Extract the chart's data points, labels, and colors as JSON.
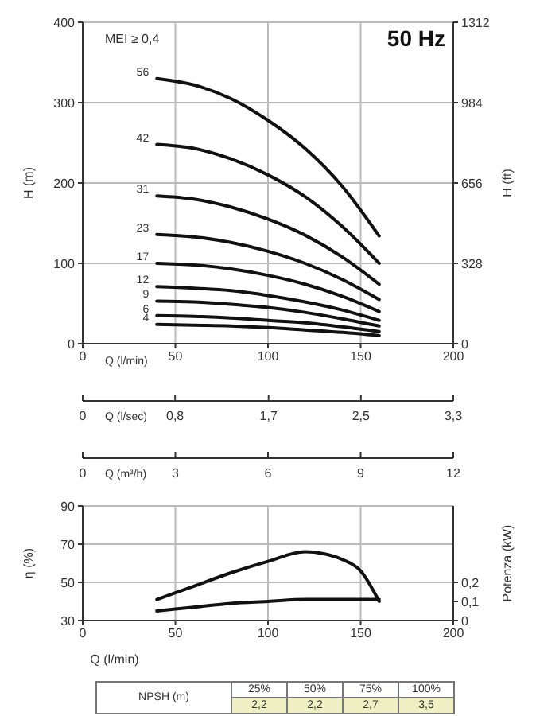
{
  "chart_data": [
    {
      "type": "line",
      "xlabel": "Q (l/min)",
      "ylabel": "H (m)",
      "y2label": "H (ft)",
      "x2label": "Q (l/sec)",
      "marker": "none",
      "grid": true,
      "x": [
        40,
        60,
        80,
        100,
        120,
        140,
        160
      ],
      "series": [
        {
          "name": "56",
          "color": "#111111",
          "values": [
            330,
            322,
            305,
            278,
            243,
            196,
            134
          ]
        },
        {
          "name": "42",
          "color": "#111111",
          "values": [
            248,
            243,
            230,
            210,
            183,
            146,
            100
          ]
        },
        {
          "name": "31",
          "color": "#111111",
          "values": [
            184,
            180,
            170,
            155,
            135,
            108,
            74
          ]
        },
        {
          "name": "23",
          "color": "#111111",
          "values": [
            136,
            133,
            126,
            115,
            100,
            80,
            55
          ]
        },
        {
          "name": "17",
          "color": "#111111",
          "values": [
            100,
            98,
            93,
            85,
            74,
            59,
            40
          ]
        },
        {
          "name": "12",
          "color": "#111111",
          "values": [
            71,
            69,
            66,
            60,
            52,
            42,
            29
          ]
        },
        {
          "name": "9",
          "color": "#111111",
          "values": [
            53,
            52,
            49,
            45,
            39,
            31,
            22
          ]
        },
        {
          "name": "6",
          "color": "#111111",
          "values": [
            35,
            34,
            32,
            29,
            26,
            21,
            15
          ]
        },
        {
          "name": "4",
          "color": "#111111",
          "values": [
            24,
            23,
            22,
            20,
            17,
            14,
            10
          ]
        }
      ],
      "xlim": [
        0,
        200
      ],
      "xticks": [
        0,
        50,
        100,
        150,
        200
      ],
      "ylim": [
        0,
        400
      ],
      "yticks": [
        0,
        100,
        200,
        300,
        400
      ],
      "y2lim": [
        0,
        1312
      ],
      "y2ticks": [
        0,
        328,
        656,
        984,
        1312
      ],
      "x2lim": [
        0,
        3.33
      ],
      "x2ticks": [
        0,
        {
          "value": 0.83,
          "label": "0,8"
        },
        {
          "value": 1.67,
          "label": "1,7"
        },
        {
          "value": 2.5,
          "label": "2,5"
        },
        {
          "value": 3.33,
          "label": "3,3"
        }
      ],
      "annotations": [
        "MEI ≥ 0,4",
        "50 Hz"
      ]
    },
    {
      "type": "line",
      "xlabel": "Q (l/min)",
      "ylabel": "η (%)",
      "y2label": "Potenza (kW)",
      "x2label": "Q (m³/h)",
      "marker": "none",
      "grid": true,
      "series": [
        {
          "color": "#111111",
          "x": [
            40,
            60,
            80,
            100,
            120,
            130,
            140,
            150,
            160
          ],
          "values": [
            41,
            48,
            55,
            61,
            66,
            65,
            62,
            56,
            40
          ]
        },
        {
          "color": "#111111",
          "axis": "y2",
          "x": [
            40,
            60,
            80,
            100,
            120,
            140,
            160
          ],
          "values": [
            0.05,
            0.07,
            0.09,
            0.1,
            0.11,
            0.11,
            0.11
          ]
        }
      ],
      "xlim": [
        0,
        200
      ],
      "xticks": [
        0,
        50,
        100,
        150,
        200
      ],
      "ylim": [
        30,
        90
      ],
      "yticks": [
        30,
        50,
        70,
        90
      ],
      "y2lim": [
        0,
        0.6
      ],
      "y2ticks": [
        0,
        {
          "value": 0.1,
          "label": "0,1"
        },
        {
          "value": 0.2,
          "label": "0,2"
        }
      ],
      "x2lim": [
        0,
        12
      ],
      "x2ticks": [
        0,
        3,
        6,
        9,
        12
      ],
      "annotations": [
        "NPSH (m)",
        "25%",
        "50%",
        "75%",
        "100%",
        "2,2",
        "2,2",
        "2,7",
        "3,5"
      ]
    }
  ]
}
